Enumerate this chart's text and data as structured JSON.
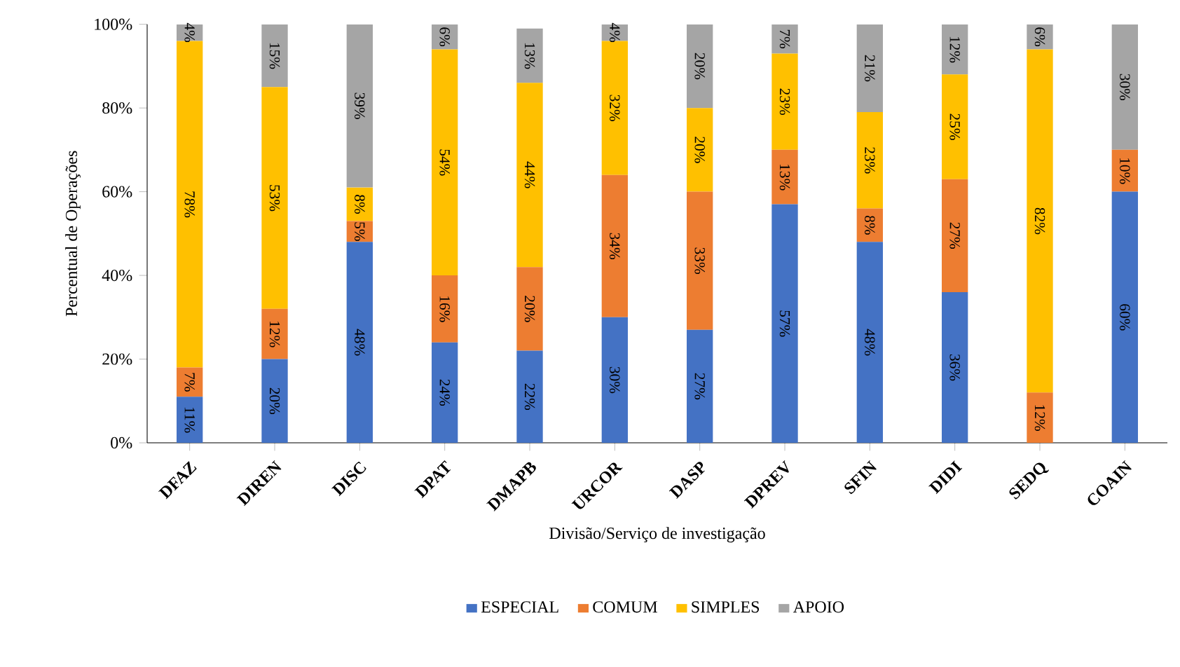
{
  "chart_data": {
    "type": "bar",
    "stacked": true,
    "xlabel": "Divisão/Serviço de investigação",
    "ylabel": "Percentual de Operações",
    "categories": [
      "DFAZ",
      "DIREN",
      "DISC",
      "DPAT",
      "DMAPB",
      "URCOR",
      "DASP",
      "DPREV",
      "SFIN",
      "DIDI",
      "SEDQ",
      "COAIN"
    ],
    "ylim": [
      0,
      100
    ],
    "yticks": [
      {
        "value": 0,
        "label": "0%"
      },
      {
        "value": 20,
        "label": "20%"
      },
      {
        "value": 40,
        "label": "40%"
      },
      {
        "value": 60,
        "label": "60%"
      },
      {
        "value": 80,
        "label": "80%"
      },
      {
        "value": 100,
        "label": "100%"
      }
    ],
    "grid": false,
    "legend": "bottom",
    "series": [
      {
        "name": "ESPECIAL",
        "color": "#4472c4",
        "values": [
          11,
          20,
          48,
          24,
          22,
          30,
          27,
          57,
          48,
          36,
          0,
          60
        ],
        "value_labels": [
          "11%",
          "20%",
          "48%",
          "24%",
          "22%",
          "30%",
          "27%",
          "57%",
          "48%",
          "36%",
          null,
          "60%"
        ]
      },
      {
        "name": "COMUM",
        "color": "#ed7d31",
        "values": [
          7,
          12,
          5,
          16,
          20,
          34,
          33,
          13,
          8,
          27,
          12,
          10
        ],
        "value_labels": [
          "7%",
          "12%",
          "5%",
          "16%",
          "20%",
          "34%",
          "33%",
          "13%",
          "8%",
          "27%",
          "12%",
          "10%"
        ]
      },
      {
        "name": "SIMPLES",
        "color": "#ffc000",
        "values": [
          78,
          53,
          8,
          54,
          44,
          32,
          20,
          23,
          23,
          25,
          82,
          0
        ],
        "value_labels": [
          "78%",
          "53%",
          "8%",
          "54%",
          "44%",
          "32%",
          "20%",
          "23%",
          "23%",
          "25%",
          "82%",
          null
        ]
      },
      {
        "name": "APOIO",
        "color": "#a5a5a5",
        "values": [
          4,
          15,
          39,
          6,
          13,
          4,
          20,
          7,
          21,
          12,
          6,
          30
        ],
        "value_labels": [
          "4%",
          "15%",
          "39%",
          "6%",
          "13%",
          "4%",
          "20%",
          "7%",
          "21%",
          "12%",
          "6%",
          "30%"
        ]
      }
    ]
  }
}
